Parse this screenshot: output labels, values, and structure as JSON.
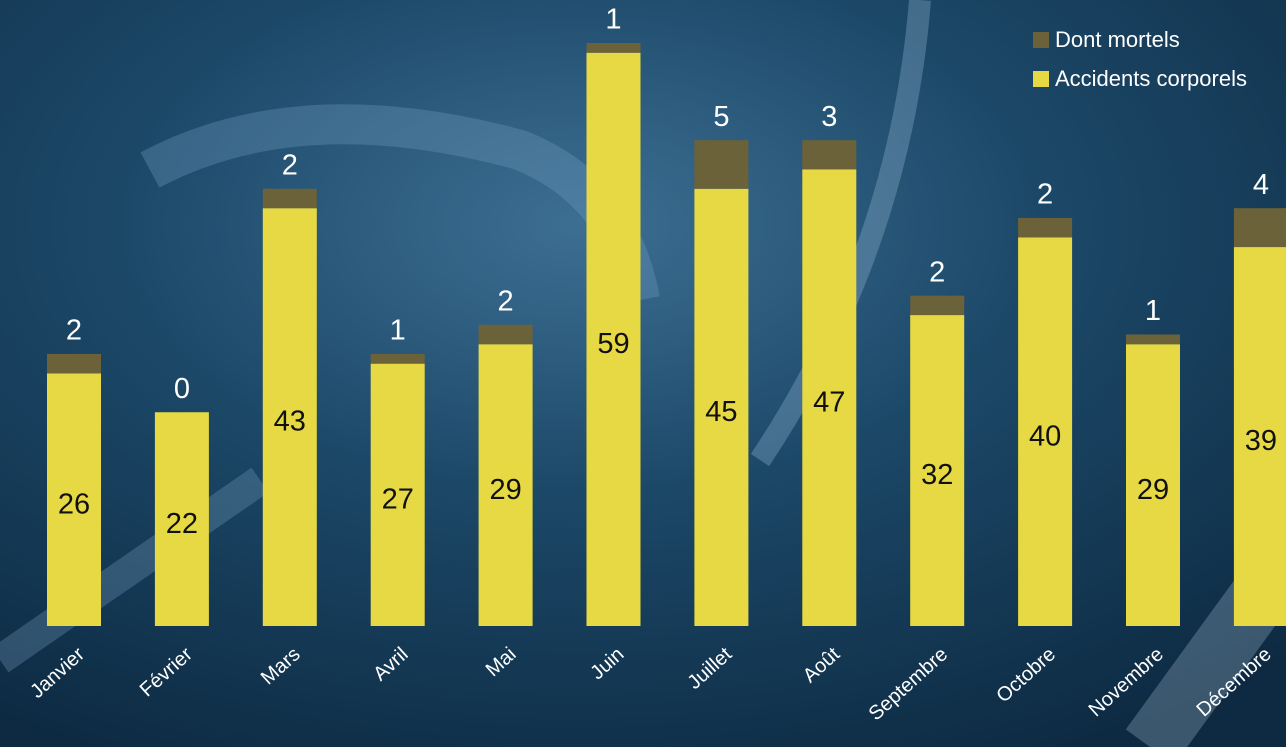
{
  "chart_data": {
    "type": "stacked_bar",
    "categories": [
      "Janvier",
      "Février",
      "Mars",
      "Avril",
      "Mai",
      "Juin",
      "Juillet",
      "Août",
      "Septembre",
      "Octobre",
      "Novembre",
      "Décembre"
    ],
    "series": [
      {
        "name": "Accidents corporels",
        "color": "#e6d944",
        "values": [
          26,
          22,
          43,
          27,
          29,
          59,
          45,
          47,
          32,
          40,
          29,
          39
        ]
      },
      {
        "name": "Dont mortels",
        "color": "#6b6239",
        "values": [
          2,
          0,
          2,
          1,
          2,
          1,
          5,
          3,
          2,
          2,
          1,
          4
        ]
      }
    ],
    "legend": "top-right"
  }
}
